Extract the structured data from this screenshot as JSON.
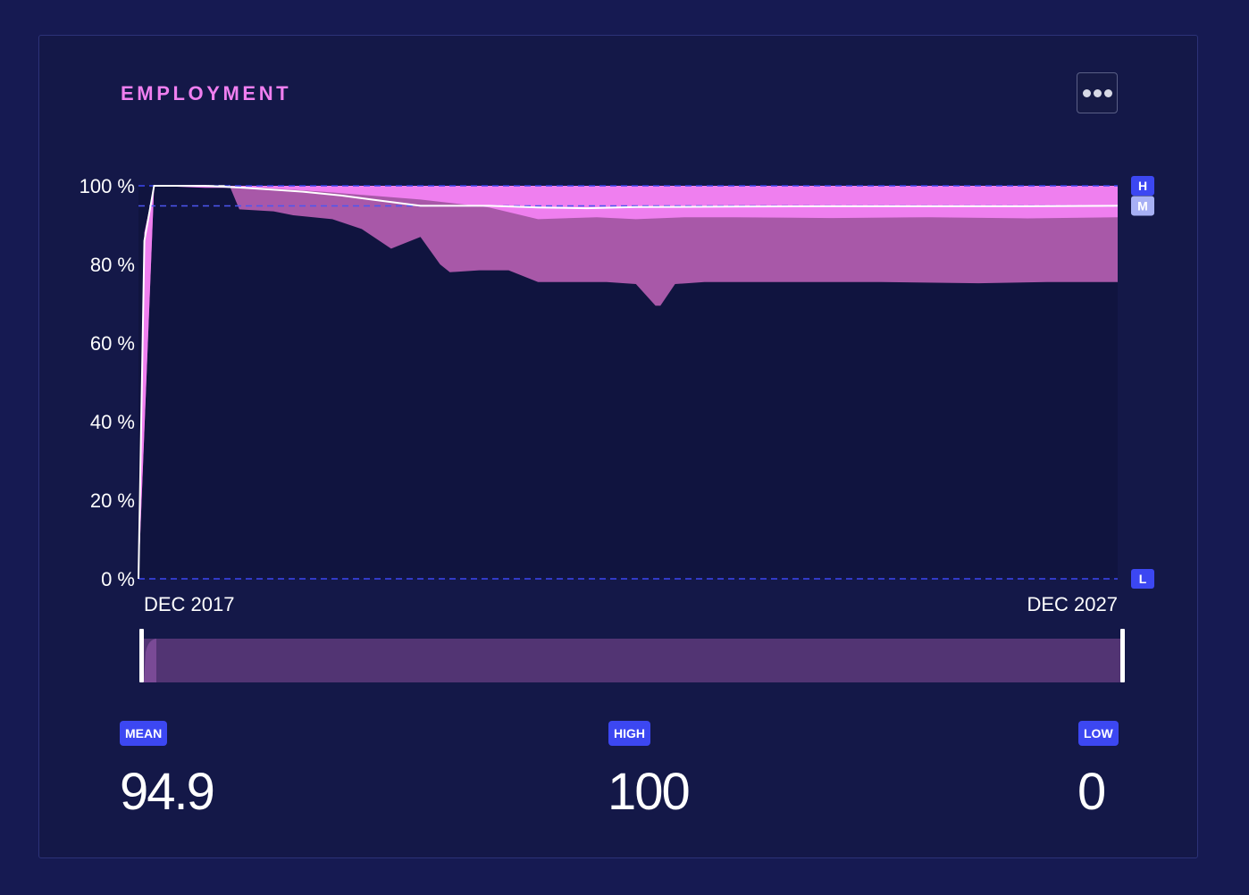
{
  "title": "EMPLOYMENT",
  "menu_icon": "ellipsis-icon",
  "colors": {
    "background": "#161a52",
    "card": "#141848",
    "title": "#f07ff0",
    "band_outer": "#a858a8",
    "band_inner": "#ef7fef",
    "mean_line": "#ffffff",
    "reference_line": "#3c47f2",
    "badge": "#3c47f2",
    "badge_mean_marker": "#a7b0f5",
    "navigator": "#523473"
  },
  "chart_data": {
    "type": "area",
    "ylim": [
      0,
      100
    ],
    "y_ticks": [
      "100 %",
      "80 %",
      "60 %",
      "40 %",
      "20 %",
      "0 %"
    ],
    "y_tick_values": [
      100,
      80,
      60,
      40,
      20,
      0
    ],
    "x_labels": {
      "start": "DEC 2017",
      "end": "DEC 2027"
    },
    "x_range": [
      2017.92,
      2027.92
    ],
    "reference_markers": [
      {
        "label": "H",
        "value": 100
      },
      {
        "label": "M",
        "value": 94.9
      },
      {
        "label": "L",
        "value": 0
      }
    ],
    "series": [
      {
        "role": "mean",
        "x": [
          2017.92,
          2017.98,
          2018.08,
          2018.6,
          2019.0,
          2019.3,
          2019.6,
          2020.0,
          2020.3,
          2020.8,
          2021.5,
          2022.0,
          2022.5,
          2023.0,
          2024.0,
          2025.0,
          2026.0,
          2027.0,
          2027.92
        ],
        "y": [
          0,
          86,
          100,
          100,
          99.5,
          99.0,
          98.5,
          97.5,
          96.5,
          94.9,
          94.9,
          94.5,
          94.3,
          94.6,
          94.7,
          94.8,
          94.8,
          94.8,
          94.9
        ]
      },
      {
        "role": "inner_band_upper",
        "x": [
          2017.92,
          2017.98,
          2018.08,
          2027.92
        ],
        "y": [
          0,
          88,
          100,
          100
        ]
      },
      {
        "role": "inner_band_lower",
        "x": [
          2018.08,
          2018.6,
          2019.2,
          2019.8,
          2020.3,
          2020.8,
          2021.5,
          2022.0,
          2022.6,
          2023.0,
          2023.5,
          2024.0,
          2025.0,
          2026.0,
          2027.0,
          2027.92
        ],
        "y": [
          100,
          99.5,
          99.5,
          98.5,
          97.5,
          96.5,
          94.5,
          91.5,
          92.0,
          91.5,
          92.0,
          92.0,
          91.8,
          92.0,
          91.7,
          92.0
        ]
      },
      {
        "role": "outer_band_upper",
        "x": [
          2017.92,
          2017.98,
          2018.08,
          2027.92
        ],
        "y": [
          0,
          88,
          100,
          100
        ]
      },
      {
        "role": "outer_band_lower",
        "x": [
          2018.08,
          2018.85,
          2018.95,
          2019.3,
          2019.5,
          2019.9,
          2020.2,
          2020.5,
          2020.8,
          2021.0,
          2021.1,
          2021.4,
          2021.7,
          2022.0,
          2022.3,
          2022.7,
          2023.0,
          2023.2,
          2023.25,
          2023.4,
          2023.7,
          2024.5,
          2025.5,
          2026.5,
          2027.2,
          2027.92
        ],
        "y": [
          100,
          100,
          94,
          93.5,
          92.5,
          91.5,
          89,
          84,
          87,
          80,
          78,
          78.5,
          78.5,
          75.5,
          75.5,
          75.5,
          75.0,
          69.5,
          69.5,
          75.0,
          75.5,
          75.5,
          75.5,
          75.2,
          75.5,
          75.5
        ]
      }
    ],
    "navigator": {
      "start_label": "DEC 2017",
      "end_label": "DEC 2027"
    }
  },
  "stats": {
    "mean": {
      "label": "MEAN",
      "value": "94.9"
    },
    "high": {
      "label": "HIGH",
      "value": "100"
    },
    "low": {
      "label": "LOW",
      "value": "0"
    }
  }
}
